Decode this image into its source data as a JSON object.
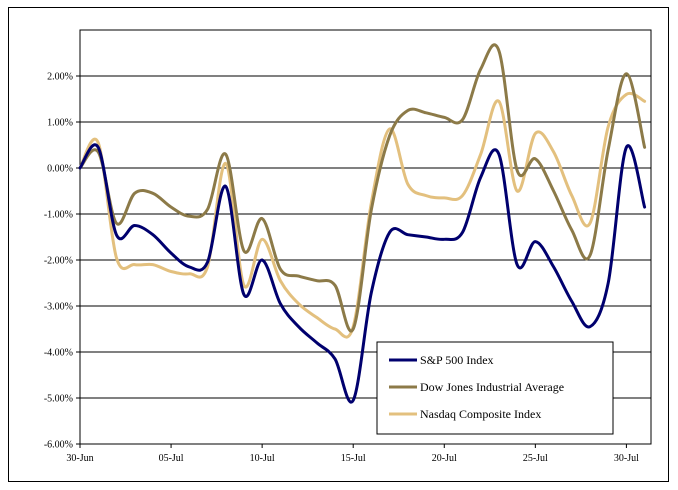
{
  "chart_data": {
    "type": "line",
    "title": "",
    "xlabel": "",
    "ylabel": "",
    "ylim": [
      -0.06,
      0.03
    ],
    "yticks": [
      -0.06,
      -0.05,
      -0.04,
      -0.03,
      -0.02,
      -0.01,
      0.0,
      0.01,
      0.02
    ],
    "ytick_labels": [
      "-6.00%",
      "-5.00%",
      "-4.00%",
      "-3.00%",
      "-2.00%",
      "-1.00%",
      "0.00%",
      "1.00%",
      "2.00%"
    ],
    "xlim": [
      "2008-06-30",
      "2008-07-31"
    ],
    "x_tick_labels": [
      "30-Jun",
      "05-Jul",
      "10-Jul",
      "15-Jul",
      "20-Jul",
      "25-Jul",
      "30-Jul"
    ],
    "x_ticks": [
      "2008-06-30",
      "2008-07-05",
      "2008-07-10",
      "2008-07-15",
      "2008-07-20",
      "2008-07-25",
      "2008-07-30"
    ],
    "grid": "horizontal",
    "legend_position": "bottom-right",
    "series": [
      {
        "name": "S&P 500 Index",
        "color": "#00006e",
        "x": [
          "2008-06-30",
          "2008-07-01",
          "2008-07-02",
          "2008-07-03",
          "2008-07-04",
          "2008-07-05",
          "2008-07-06",
          "2008-07-07",
          "2008-07-08",
          "2008-07-09",
          "2008-07-10",
          "2008-07-11",
          "2008-07-12",
          "2008-07-13",
          "2008-07-14",
          "2008-07-15",
          "2008-07-16",
          "2008-07-17",
          "2008-07-18",
          "2008-07-19",
          "2008-07-20",
          "2008-07-21",
          "2008-07-22",
          "2008-07-23",
          "2008-07-24",
          "2008-07-25",
          "2008-07-26",
          "2008-07-27",
          "2008-07-28",
          "2008-07-29",
          "2008-07-30",
          "2008-07-31"
        ],
        "values": [
          0.0,
          0.45,
          -1.45,
          -1.25,
          -1.45,
          -1.85,
          -2.15,
          -2.05,
          -0.4,
          -2.75,
          -2.0,
          -2.95,
          -3.45,
          -3.8,
          -4.15,
          -5.05,
          -2.7,
          -1.4,
          -1.45,
          -1.5,
          -1.55,
          -1.4,
          -0.2,
          0.3,
          -2.1,
          -1.6,
          -2.15,
          -2.9,
          -3.45,
          -2.5,
          0.45,
          -0.85
        ]
      },
      {
        "name": "Dow Jones Industrial Average",
        "color": "#8c7a48",
        "x": [
          "2008-06-30",
          "2008-07-01",
          "2008-07-02",
          "2008-07-03",
          "2008-07-04",
          "2008-07-05",
          "2008-07-06",
          "2008-07-07",
          "2008-07-08",
          "2008-07-09",
          "2008-07-10",
          "2008-07-11",
          "2008-07-12",
          "2008-07-13",
          "2008-07-14",
          "2008-07-15",
          "2008-07-16",
          "2008-07-17",
          "2008-07-18",
          "2008-07-19",
          "2008-07-20",
          "2008-07-21",
          "2008-07-22",
          "2008-07-23",
          "2008-07-24",
          "2008-07-25",
          "2008-07-26",
          "2008-07-27",
          "2008-07-28",
          "2008-07-29",
          "2008-07-30",
          "2008-07-31"
        ],
        "values": [
          0.0,
          0.35,
          -1.2,
          -0.55,
          -0.55,
          -0.85,
          -1.05,
          -0.9,
          0.3,
          -1.8,
          -1.1,
          -2.2,
          -2.35,
          -2.45,
          -2.55,
          -3.5,
          -0.9,
          0.7,
          1.25,
          1.2,
          1.1,
          1.05,
          2.15,
          2.55,
          -0.05,
          0.2,
          -0.5,
          -1.35,
          -1.9,
          0.4,
          2.05,
          0.45
        ]
      },
      {
        "name": "Nasdaq Composite Index",
        "color": "#e3c07e",
        "x": [
          "2008-06-30",
          "2008-07-01",
          "2008-07-02",
          "2008-07-03",
          "2008-07-04",
          "2008-07-05",
          "2008-07-06",
          "2008-07-07",
          "2008-07-08",
          "2008-07-09",
          "2008-07-10",
          "2008-07-11",
          "2008-07-12",
          "2008-07-13",
          "2008-07-14",
          "2008-07-15",
          "2008-07-16",
          "2008-07-17",
          "2008-07-18",
          "2008-07-19",
          "2008-07-20",
          "2008-07-21",
          "2008-07-22",
          "2008-07-23",
          "2008-07-24",
          "2008-07-25",
          "2008-07-26",
          "2008-07-27",
          "2008-07-28",
          "2008-07-29",
          "2008-07-30",
          "2008-07-31"
        ],
        "values": [
          0.0,
          0.55,
          -1.95,
          -2.1,
          -2.1,
          -2.25,
          -2.3,
          -2.15,
          0.1,
          -2.55,
          -1.55,
          -2.45,
          -2.95,
          -3.25,
          -3.5,
          -3.45,
          -0.75,
          0.85,
          -0.35,
          -0.6,
          -0.65,
          -0.6,
          0.3,
          1.45,
          -0.5,
          0.75,
          0.35,
          -0.6,
          -1.2,
          0.9,
          1.6,
          1.45
        ]
      }
    ]
  }
}
